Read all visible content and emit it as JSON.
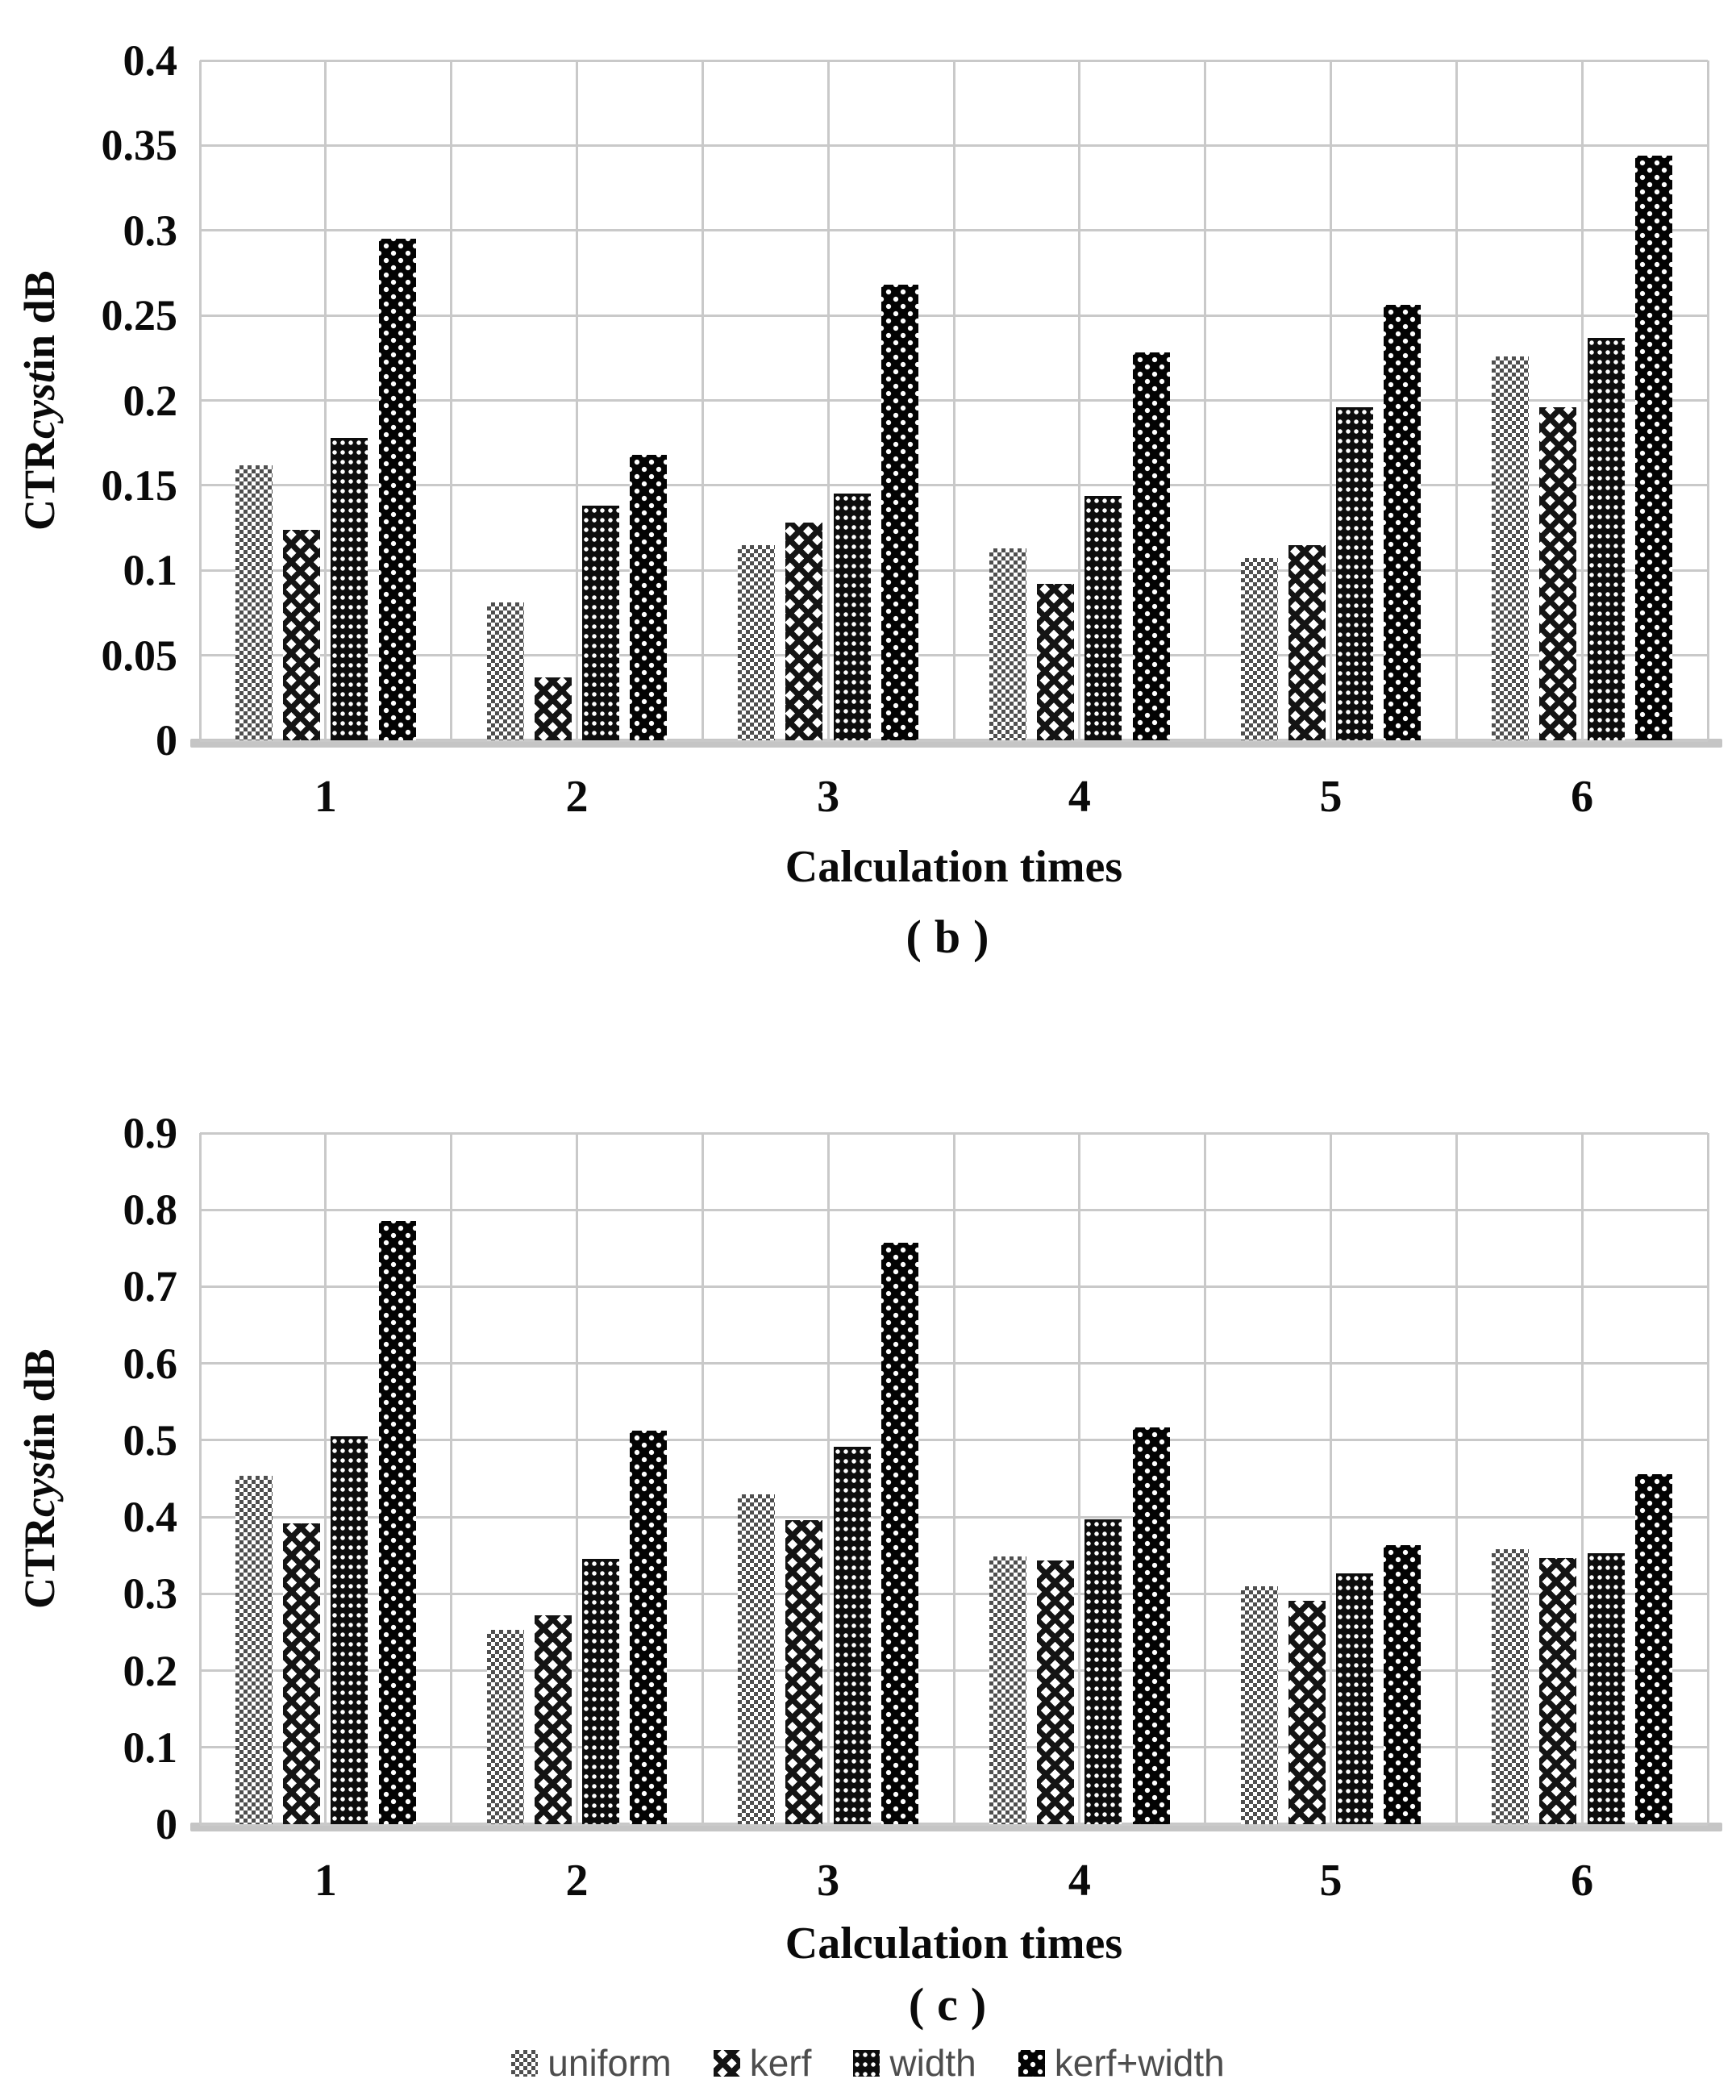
{
  "page": {
    "background": "#ffffff"
  },
  "panels": {
    "b": {
      "caption": "(b)",
      "xlabel": "Calculation times",
      "ylabel_prefix": "CTR",
      "ylabel_italic": "cyst",
      "ylabel_suffix": " in dB"
    },
    "c": {
      "caption": "(c)",
      "xlabel": "Calculation times",
      "ylabel_prefix": "CTR",
      "ylabel_italic": "cyst",
      "ylabel_suffix": " in dB"
    }
  },
  "legend": {
    "text_color": "#4d4d4d",
    "items": [
      {
        "label": "uniform",
        "pattern": "uniform"
      },
      {
        "label": "kerf",
        "pattern": "kerf"
      },
      {
        "label": "width",
        "pattern": "width"
      },
      {
        "label": "kerf+width",
        "pattern": "kw"
      }
    ]
  },
  "colors": {
    "gridline": "#c9c9c9",
    "axis_line": "#c5c5c5",
    "text": "#0a0a0a",
    "bar_fill_dark": "#030303",
    "bar_fill_gray": "#4f4f4f"
  },
  "chart_data": [
    {
      "type": "bar",
      "panel": "b",
      "title": "(b)",
      "xlabel": "Calculation times",
      "ylabel": "CTRcyst in dB",
      "categories": [
        "1",
        "2",
        "3",
        "4",
        "5",
        "6"
      ],
      "series": [
        {
          "name": "uniform",
          "pattern": "uniform",
          "values": [
            0.162,
            0.081,
            0.115,
            0.113,
            0.107,
            0.226
          ]
        },
        {
          "name": "kerf",
          "pattern": "kerf",
          "values": [
            0.124,
            0.037,
            0.128,
            0.092,
            0.115,
            0.196
          ]
        },
        {
          "name": "width",
          "pattern": "width",
          "values": [
            0.178,
            0.138,
            0.145,
            0.144,
            0.196,
            0.237
          ]
        },
        {
          "name": "kerf+width",
          "pattern": "kw",
          "values": [
            0.295,
            0.168,
            0.268,
            0.228,
            0.256,
            0.344
          ]
        }
      ],
      "ylim": [
        0,
        0.4
      ],
      "ytick_labels": [
        "0.4",
        "0.35",
        "0.3",
        "0.25",
        "0.2",
        "0.15",
        "0.1",
        "0.05",
        "0"
      ],
      "grid": true,
      "legend_position": "none"
    },
    {
      "type": "bar",
      "panel": "c",
      "title": "(c)",
      "xlabel": "Calculation times",
      "ylabel": "CTRcyst in dB",
      "categories": [
        "1",
        "2",
        "3",
        "4",
        "5",
        "6"
      ],
      "series": [
        {
          "name": "uniform",
          "pattern": "uniform",
          "values": [
            0.454,
            0.253,
            0.429,
            0.349,
            0.31,
            0.358
          ]
        },
        {
          "name": "kerf",
          "pattern": "kerf",
          "values": [
            0.392,
            0.272,
            0.396,
            0.343,
            0.291,
            0.347
          ]
        },
        {
          "name": "width",
          "pattern": "width",
          "values": [
            0.505,
            0.345,
            0.491,
            0.397,
            0.327,
            0.353
          ]
        },
        {
          "name": "kerf+width",
          "pattern": "kw",
          "values": [
            0.786,
            0.512,
            0.757,
            0.517,
            0.363,
            0.456
          ]
        }
      ],
      "ylim": [
        0,
        0.9
      ],
      "ytick_labels": [
        "0.9",
        "0.8",
        "0.7",
        "0.6",
        "0.5",
        "0.4",
        "0.3",
        "0.2",
        "0.1",
        "0"
      ],
      "grid": true,
      "legend_position": "bottom"
    }
  ]
}
